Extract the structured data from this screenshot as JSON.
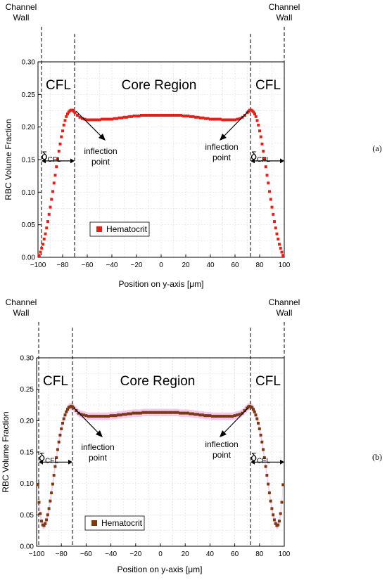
{
  "chart_data": [
    {
      "type": "scatter",
      "panel_label": "(a)",
      "marker_color": "#e3201a",
      "xlabel": "Position on y-axis [",
      "xlabel_unit": "μm",
      "xlabel_close": "]",
      "ylabel": "RBC Volume Fraction",
      "xlim": [
        -100,
        100
      ],
      "ylim": [
        0,
        0.3
      ],
      "grid": true,
      "legend_position": "bottom-left",
      "xticks": [
        "−100",
        "−80",
        "−60",
        "−40",
        "−20",
        "0",
        "20",
        "40",
        "60",
        "80",
        "100"
      ],
      "yticks": [
        "0.00",
        "0.05",
        "0.10",
        "0.15",
        "0.20",
        "0.25",
        "0.30"
      ],
      "annotations": {
        "wall_left": [
          "Channel",
          "Wall"
        ],
        "wall_right": [
          "Channel",
          "Wall"
        ],
        "cfl_left": "CFL",
        "cfl_right": "CFL",
        "core": "Core Region",
        "inflection_left": [
          "inflection",
          "point"
        ],
        "inflection_right": [
          "inflection",
          "point"
        ],
        "delta_symbol": "δ",
        "delta_sub": "CFL",
        "cfl_level": 0.148,
        "cfl_boundary": 72
      },
      "series": [
        {
          "name": "Hematocrit",
          "x": [
            -99,
            -98,
            -97,
            -96,
            -95,
            -94,
            -93,
            -92,
            -91,
            -90,
            -89,
            -88,
            -87,
            -86,
            -85,
            -84,
            -83,
            -82,
            -81,
            -80,
            -79,
            -78,
            -77,
            -76,
            -75,
            -74,
            -73,
            -72,
            -71,
            -70,
            -68,
            -66,
            -64,
            -62,
            -60,
            -58,
            -56,
            -54,
            -52,
            -50,
            -48,
            -46,
            -44,
            -42,
            -40,
            -38,
            -36,
            -34,
            -32,
            -30,
            -28,
            -26,
            -24,
            -22,
            -20,
            -18,
            -16,
            -14,
            -12,
            -10,
            -8,
            -6,
            -4,
            -2,
            0,
            2,
            4,
            6,
            8,
            10,
            12,
            14,
            16,
            18,
            20,
            22,
            24,
            26,
            28,
            30,
            32,
            34,
            36,
            38,
            40,
            42,
            44,
            46,
            48,
            50,
            52,
            54,
            56,
            58,
            60,
            62,
            64,
            66,
            68,
            70,
            71,
            72,
            73,
            74,
            75,
            76,
            77,
            78,
            79,
            80,
            81,
            82,
            83,
            84,
            85,
            86,
            87,
            88,
            89,
            90,
            91,
            92,
            93,
            94,
            95,
            96,
            97,
            98,
            99
          ],
          "y": [
            0.003,
            0.008,
            0.014,
            0.02,
            0.028,
            0.036,
            0.045,
            0.055,
            0.066,
            0.077,
            0.089,
            0.101,
            0.114,
            0.126,
            0.139,
            0.151,
            0.163,
            0.174,
            0.185,
            0.194,
            0.203,
            0.21,
            0.216,
            0.22,
            0.223,
            0.225,
            0.226,
            0.226,
            0.224,
            0.222,
            0.218,
            0.215,
            0.213,
            0.212,
            0.211,
            0.211,
            0.211,
            0.211,
            0.211,
            0.211,
            0.212,
            0.212,
            0.212,
            0.212,
            0.212,
            0.213,
            0.213,
            0.214,
            0.214,
            0.215,
            0.215,
            0.216,
            0.216,
            0.217,
            0.217,
            0.217,
            0.218,
            0.218,
            0.218,
            0.218,
            0.218,
            0.218,
            0.218,
            0.218,
            0.218,
            0.218,
            0.218,
            0.218,
            0.218,
            0.218,
            0.218,
            0.218,
            0.218,
            0.217,
            0.217,
            0.217,
            0.216,
            0.216,
            0.215,
            0.215,
            0.214,
            0.214,
            0.213,
            0.213,
            0.212,
            0.212,
            0.212,
            0.212,
            0.212,
            0.211,
            0.211,
            0.211,
            0.211,
            0.211,
            0.211,
            0.212,
            0.213,
            0.215,
            0.218,
            0.222,
            0.224,
            0.226,
            0.226,
            0.225,
            0.223,
            0.22,
            0.216,
            0.21,
            0.203,
            0.194,
            0.185,
            0.174,
            0.163,
            0.151,
            0.139,
            0.126,
            0.114,
            0.101,
            0.089,
            0.077,
            0.066,
            0.055,
            0.045,
            0.036,
            0.028,
            0.02,
            0.014,
            0.008,
            0.003
          ]
        }
      ]
    },
    {
      "type": "scatter",
      "panel_label": "(b)",
      "marker_color": "#7a3a12",
      "band_color": "#f4b6e8",
      "xlabel": "Position on y-axis [",
      "xlabel_unit": "μm",
      "xlabel_close": "]",
      "ylabel": "RBC Volume Fraction",
      "xlim": [
        -100,
        100
      ],
      "ylim": [
        0,
        0.3
      ],
      "grid": true,
      "legend_position": "bottom-left",
      "xticks": [
        "−100",
        "−80",
        "−60",
        "−40",
        "−20",
        "0",
        "20",
        "40",
        "60",
        "80",
        "100"
      ],
      "yticks": [
        "0.00",
        "0.05",
        "0.10",
        "0.15",
        "0.20",
        "0.25",
        "0.30"
      ],
      "annotations": {
        "wall_left": [
          "Channel",
          "Wall"
        ],
        "wall_right": [
          "Channel",
          "Wall"
        ],
        "cfl_left": "CFL",
        "cfl_right": "CFL",
        "core": "Core Region",
        "inflection_left": [
          "inflection",
          "point"
        ],
        "inflection_right": [
          "inflection",
          "point"
        ],
        "delta_symbol": "δ",
        "delta_sub": "CFL",
        "cfl_level": 0.134,
        "cfl_boundary": 72
      },
      "series": [
        {
          "name": "Hematocrit",
          "x": [
            -99,
            -98,
            -97,
            -96,
            -95,
            -94,
            -93,
            -92,
            -91,
            -90,
            -89,
            -88,
            -87,
            -86,
            -85,
            -84,
            -83,
            -82,
            -81,
            -80,
            -79,
            -78,
            -77,
            -76,
            -75,
            -74,
            -73,
            -72,
            -71,
            -70,
            -68,
            -66,
            -64,
            -62,
            -60,
            -58,
            -56,
            -54,
            -52,
            -50,
            -48,
            -46,
            -44,
            -42,
            -40,
            -38,
            -36,
            -34,
            -32,
            -30,
            -28,
            -26,
            -24,
            -22,
            -20,
            -18,
            -16,
            -14,
            -12,
            -10,
            -8,
            -6,
            -4,
            -2,
            0,
            2,
            4,
            6,
            8,
            10,
            12,
            14,
            16,
            18,
            20,
            22,
            24,
            26,
            28,
            30,
            32,
            34,
            36,
            38,
            40,
            42,
            44,
            46,
            48,
            50,
            52,
            54,
            56,
            58,
            60,
            62,
            64,
            66,
            68,
            70,
            71,
            72,
            73,
            74,
            75,
            76,
            77,
            78,
            79,
            80,
            81,
            82,
            83,
            84,
            85,
            86,
            87,
            88,
            89,
            90,
            91,
            92,
            93,
            94,
            95,
            96,
            97,
            98,
            99
          ],
          "y": [
            0.098,
            0.07,
            0.052,
            0.04,
            0.034,
            0.033,
            0.036,
            0.042,
            0.05,
            0.06,
            0.072,
            0.085,
            0.099,
            0.113,
            0.127,
            0.141,
            0.154,
            0.166,
            0.177,
            0.187,
            0.196,
            0.203,
            0.209,
            0.214,
            0.218,
            0.221,
            0.222,
            0.223,
            0.222,
            0.22,
            0.216,
            0.212,
            0.21,
            0.209,
            0.208,
            0.207,
            0.207,
            0.207,
            0.207,
            0.207,
            0.207,
            0.207,
            0.207,
            0.207,
            0.208,
            0.208,
            0.208,
            0.209,
            0.209,
            0.21,
            0.21,
            0.211,
            0.211,
            0.212,
            0.212,
            0.212,
            0.212,
            0.213,
            0.213,
            0.213,
            0.213,
            0.213,
            0.213,
            0.213,
            0.213,
            0.213,
            0.213,
            0.213,
            0.213,
            0.213,
            0.213,
            0.213,
            0.212,
            0.212,
            0.212,
            0.212,
            0.211,
            0.211,
            0.21,
            0.21,
            0.209,
            0.209,
            0.208,
            0.208,
            0.208,
            0.207,
            0.207,
            0.207,
            0.207,
            0.207,
            0.207,
            0.207,
            0.207,
            0.207,
            0.208,
            0.209,
            0.21,
            0.212,
            0.216,
            0.22,
            0.222,
            0.223,
            0.222,
            0.221,
            0.218,
            0.214,
            0.209,
            0.203,
            0.196,
            0.187,
            0.177,
            0.166,
            0.154,
            0.141,
            0.127,
            0.113,
            0.099,
            0.085,
            0.072,
            0.06,
            0.05,
            0.042,
            0.036,
            0.033,
            0.034,
            0.04,
            0.052,
            0.07,
            0.098
          ]
        }
      ]
    }
  ]
}
